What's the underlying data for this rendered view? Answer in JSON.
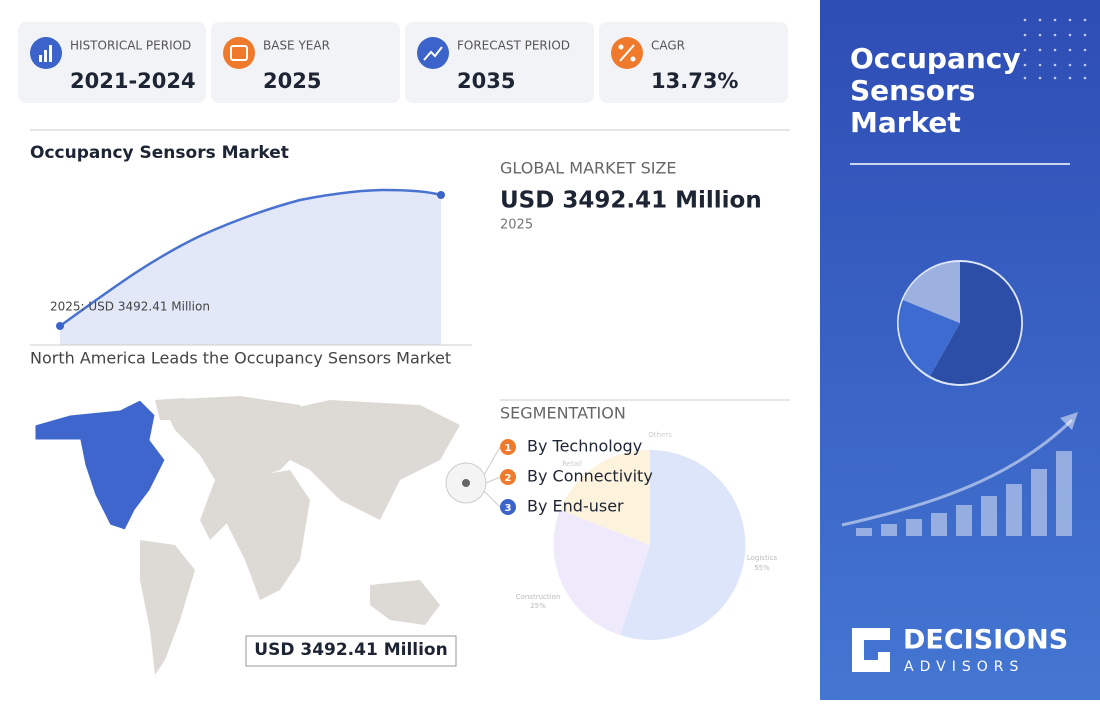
{
  "stats": [
    {
      "label": "HISTORICAL PERIOD",
      "value": "2021-2024"
    },
    {
      "label": "BASE YEAR",
      "value": "2025"
    },
    {
      "label": "FORECAST PERIOD",
      "value": "2035"
    },
    {
      "label": "CAGR",
      "value": "13.73%"
    }
  ],
  "market_chart": {
    "title": "Occupancy Sensors Market",
    "annotation": "2025: USD 3492.41 Million"
  },
  "market_size": {
    "label": "GLOBAL MARKET SIZE",
    "value": "USD 3492.41 Million",
    "year": "2025"
  },
  "region": {
    "title": "North America Leads the Occupancy Sensors Market",
    "value": "USD 3492.41 Million"
  },
  "segmentation": {
    "title": "SEGMENTATION",
    "items": [
      {
        "number": "1",
        "label": "By Technology"
      },
      {
        "number": "2",
        "label": "By Connectivity"
      },
      {
        "number": "3",
        "label": "By End-user"
      }
    ],
    "pie_labels": [
      {
        "name": "Logistics",
        "share": "55%"
      },
      {
        "name": "Construction",
        "share": "25%"
      },
      {
        "name": "Others"
      },
      {
        "name": "Retail"
      }
    ]
  },
  "side_panel": {
    "title": [
      "Occupancy",
      "Sensors",
      "Market"
    ],
    "brand": "DECISIONS",
    "brand_sub": "ADVISORS"
  }
}
